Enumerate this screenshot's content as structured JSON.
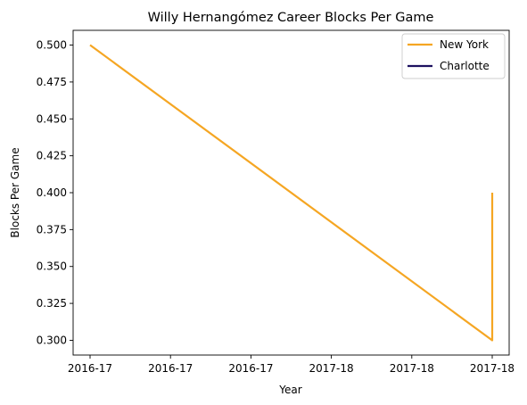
{
  "chart_data": {
    "type": "line",
    "title": "Willy Hernangómez Career Blocks Per Game",
    "xlabel": "Year",
    "ylabel": "Blocks Per Game",
    "x_tick_labels": [
      "2016-17",
      "2016-17",
      "2016-17",
      "2017-18",
      "2017-18",
      "2017-18"
    ],
    "ylim": [
      0.29,
      0.51
    ],
    "y_ticks": [
      "0.300",
      "0.325",
      "0.350",
      "0.375",
      "0.400",
      "0.425",
      "0.450",
      "0.475",
      "0.500"
    ],
    "grid": false,
    "legend_position": "upper-right",
    "series": [
      {
        "name": "New York",
        "color": "#f5a623",
        "points": [
          {
            "x": "2016-17",
            "y": 0.5
          },
          {
            "x": "2017-18",
            "y": 0.3
          },
          {
            "x": "2017-18",
            "y": 0.4
          }
        ]
      },
      {
        "name": "Charlotte",
        "color": "#1d1160",
        "points": []
      }
    ]
  }
}
